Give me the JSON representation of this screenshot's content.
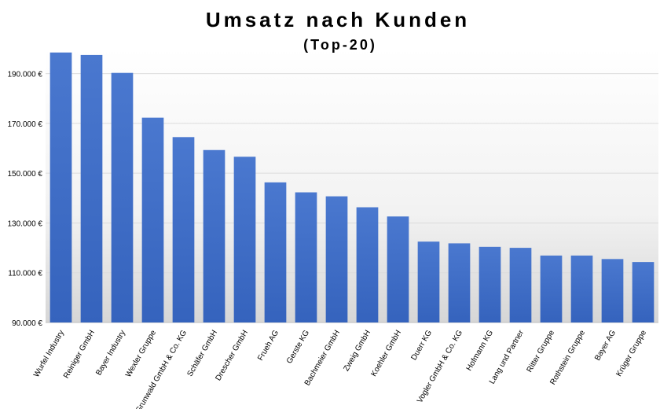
{
  "chart_data": {
    "type": "bar",
    "title": "Umsatz nach Kunden",
    "subtitle": "(Top-20)",
    "xlabel": "",
    "ylabel": "",
    "ylim": [
      90000,
      200000
    ],
    "yticks": [
      90000,
      110000,
      130000,
      150000,
      170000,
      190000
    ],
    "ytick_labels": [
      "90.000 €",
      "110.000 €",
      "130.000 €",
      "150.000 €",
      "170.000 €",
      "190.000 €"
    ],
    "grid": true,
    "legend": "none",
    "categories": [
      "Wurfel Industry",
      "Reiniger GmbH",
      "Bayer Industry",
      "Wexler Gruppe",
      "Grunwald GmbH & Co. KG",
      "Schäfer GmbH",
      "Drescher GmbH",
      "Frueh AG",
      "Gerste KG",
      "Bachmeier GmbH",
      "Zweig GmbH",
      "Koehler GmbH",
      "Duerr KG",
      "Vogler GmbH & Co. KG",
      "Hofmann KG",
      "Lang und Partner",
      "Ritter Gruppe",
      "Rothstein Gruppe",
      "Bayer AG",
      "Krüger Gruppe"
    ],
    "values": [
      198500,
      197500,
      190300,
      172300,
      164500,
      159300,
      156600,
      146300,
      142300,
      140700,
      136300,
      132600,
      122500,
      121800,
      120400,
      120000,
      116900,
      116900,
      115500,
      114300
    ],
    "colors": {
      "bar_top": "#4a78cf",
      "bar_bottom": "#3563bd",
      "grid": "#dcdcdc",
      "text": "#000000"
    }
  }
}
